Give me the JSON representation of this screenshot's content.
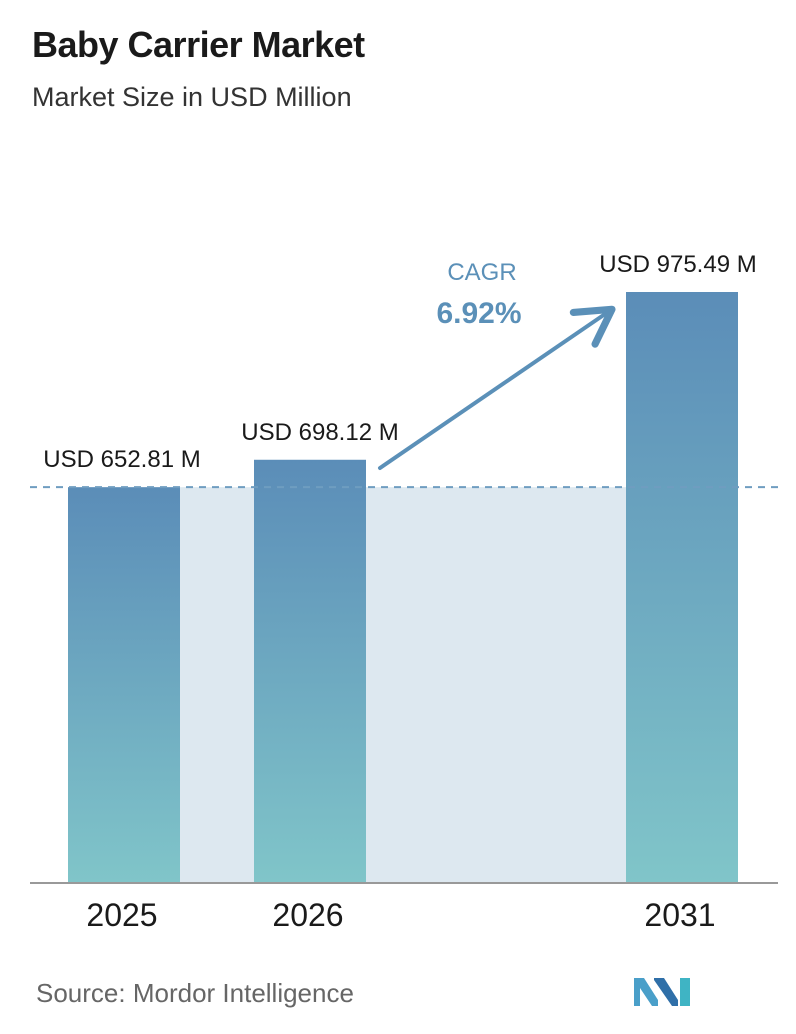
{
  "header": {
    "title": "Baby Carrier Market",
    "subtitle": "Market Size in USD Million"
  },
  "chart_data": {
    "type": "bar",
    "categories": [
      "2025",
      "2026",
      "2031"
    ],
    "values": [
      652.81,
      698.12,
      975.49
    ],
    "value_labels": [
      "USD 652.81 M",
      "USD 698.12 M",
      "USD 975.49 M"
    ],
    "title": "Baby Carrier Market",
    "subtitle": "Market Size in USD Million",
    "xlabel": "",
    "ylabel": "",
    "ylim": [
      0,
      975.49
    ],
    "grid": false,
    "reference_line": {
      "value": 652.81,
      "style": "dashed"
    },
    "annotation": {
      "label": "CAGR",
      "value": "6.92%"
    }
  },
  "colors": {
    "bar_top": "#5b8db8",
    "bar_bottom": "#80c5c9",
    "gap_fill": "#dde8f0",
    "accent": "#5b90b8",
    "axis": "#999999"
  },
  "footer": {
    "source": "Source:  Mordor Intelligence",
    "logo": "mordor-intelligence-logo"
  }
}
